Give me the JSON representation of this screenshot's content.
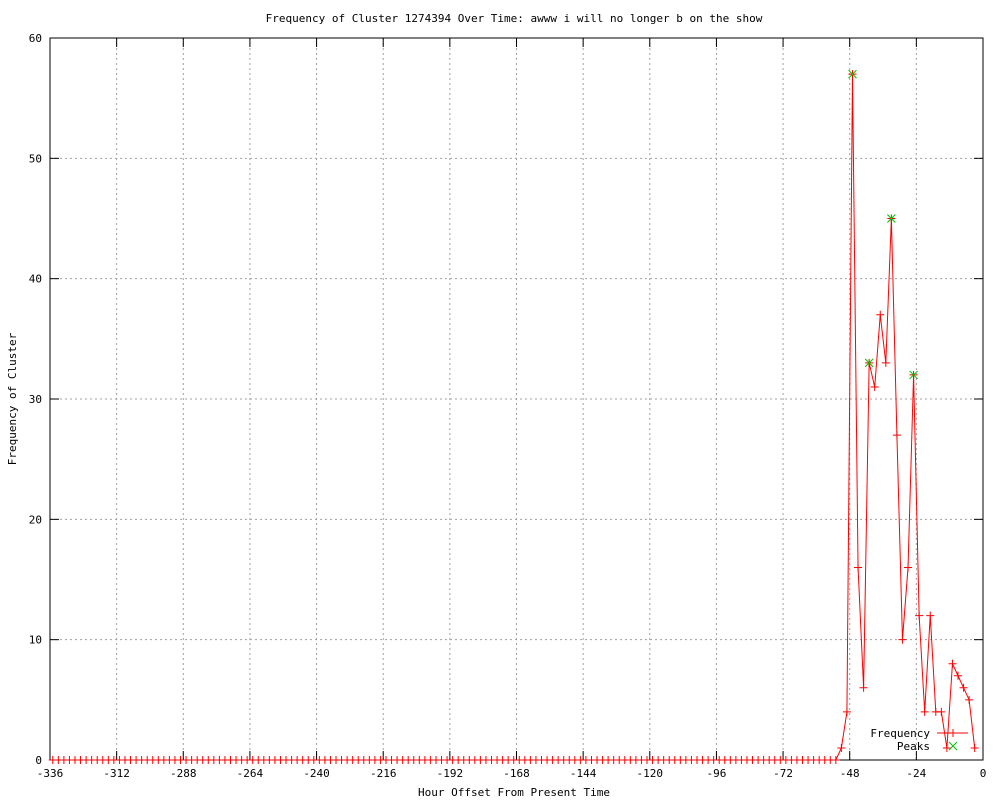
{
  "chart_data": {
    "type": "line",
    "title": "Frequency of Cluster 1274394 Over Time: awww i will no longer b on the show",
    "xlabel": "Hour Offset From Present Time",
    "ylabel": "Frequency of Cluster",
    "xlim": [
      -336,
      0
    ],
    "ylim": [
      0,
      60
    ],
    "xticks": [
      -336,
      -312,
      -288,
      -264,
      -240,
      -216,
      -192,
      -168,
      -144,
      -120,
      -96,
      -72,
      -48,
      -24,
      0
    ],
    "yticks": [
      0,
      10,
      20,
      30,
      40,
      50,
      60
    ],
    "grid": true,
    "legend_position": "bottom-right",
    "series": [
      {
        "name": "Frequency",
        "color": "#ff0000",
        "marker": "plus",
        "x": [
          -335,
          -333,
          -331,
          -329,
          -327,
          -325,
          -323,
          -321,
          -319,
          -317,
          -315,
          -313,
          -311,
          -309,
          -307,
          -305,
          -303,
          -301,
          -299,
          -297,
          -295,
          -293,
          -291,
          -289,
          -287,
          -285,
          -283,
          -281,
          -279,
          -277,
          -275,
          -273,
          -271,
          -269,
          -267,
          -265,
          -263,
          -261,
          -259,
          -257,
          -255,
          -253,
          -251,
          -249,
          -247,
          -245,
          -243,
          -241,
          -239,
          -237,
          -235,
          -233,
          -231,
          -229,
          -227,
          -225,
          -223,
          -221,
          -219,
          -217,
          -215,
          -213,
          -211,
          -209,
          -207,
          -205,
          -203,
          -201,
          -199,
          -197,
          -195,
          -193,
          -191,
          -189,
          -187,
          -185,
          -183,
          -181,
          -179,
          -177,
          -175,
          -173,
          -171,
          -169,
          -167,
          -165,
          -163,
          -161,
          -159,
          -157,
          -155,
          -153,
          -151,
          -149,
          -147,
          -145,
          -143,
          -141,
          -139,
          -137,
          -135,
          -133,
          -131,
          -129,
          -127,
          -125,
          -123,
          -121,
          -119,
          -117,
          -115,
          -113,
          -111,
          -109,
          -107,
          -105,
          -103,
          -101,
          -99,
          -97,
          -95,
          -93,
          -91,
          -89,
          -87,
          -85,
          -83,
          -81,
          -79,
          -77,
          -75,
          -73,
          -71,
          -69,
          -67,
          -65,
          -63,
          -61,
          -59,
          -57,
          -55,
          -53,
          -51,
          -49,
          -47,
          -45,
          -43,
          -41,
          -39,
          -37,
          -35,
          -33,
          -31,
          -29,
          -27,
          -25,
          -23,
          -21,
          -19,
          -17,
          -15,
          -13,
          -11,
          -9,
          -7,
          -5,
          -3
        ],
        "y": [
          0,
          0,
          0,
          0,
          0,
          0,
          0,
          0,
          0,
          0,
          0,
          0,
          0,
          0,
          0,
          0,
          0,
          0,
          0,
          0,
          0,
          0,
          0,
          0,
          0,
          0,
          0,
          0,
          0,
          0,
          0,
          0,
          0,
          0,
          0,
          0,
          0,
          0,
          0,
          0,
          0,
          0,
          0,
          0,
          0,
          0,
          0,
          0,
          0,
          0,
          0,
          0,
          0,
          0,
          0,
          0,
          0,
          0,
          0,
          0,
          0,
          0,
          0,
          0,
          0,
          0,
          0,
          0,
          0,
          0,
          0,
          0,
          0,
          0,
          0,
          0,
          0,
          0,
          0,
          0,
          0,
          0,
          0,
          0,
          0,
          0,
          0,
          0,
          0,
          0,
          0,
          0,
          0,
          0,
          0,
          0,
          0,
          0,
          0,
          0,
          0,
          0,
          0,
          0,
          0,
          0,
          0,
          0,
          0,
          0,
          0,
          0,
          0,
          0,
          0,
          0,
          0,
          0,
          0,
          0,
          0,
          0,
          0,
          0,
          0,
          0,
          0,
          0,
          0,
          0,
          0,
          0,
          0,
          0,
          0,
          0,
          0,
          0,
          0,
          0,
          0,
          0,
          1,
          4,
          57,
          16,
          6,
          33,
          31,
          37,
          33,
          45,
          27,
          10,
          16,
          32,
          12,
          4,
          12,
          4,
          4,
          1,
          8,
          7,
          6,
          5,
          1
        ]
      },
      {
        "name": "Peaks",
        "color": "#00c000",
        "marker": "cross",
        "x": [
          -47,
          -41,
          -33,
          -25
        ],
        "y": [
          57,
          33,
          45,
          32
        ]
      }
    ]
  }
}
